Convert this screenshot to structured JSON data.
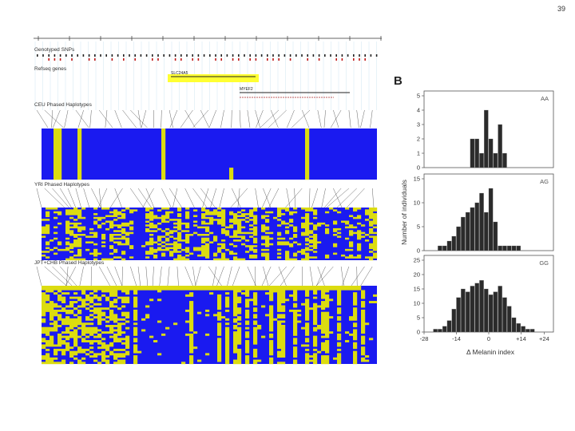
{
  "page": {
    "number": "39"
  },
  "panel_a": {
    "tracks": {
      "genotyped_snps": "Genotyped SNPs",
      "refseq_genes": "Refseq genes",
      "gene_labels": [
        "SLC24A5",
        "MYEF2"
      ]
    },
    "haplotype_blocks": [
      {
        "label": "CEU Phased Haplotypes"
      },
      {
        "label": "YRI Phased Haplotypes"
      },
      {
        "label": "JPT+CHB Phased Haplotypes"
      }
    ],
    "colors": {
      "allele_a": "#1a1af0",
      "allele_b": "#dcdc10",
      "highlight": "#ffff33"
    }
  },
  "panel_b": {
    "label": "B",
    "chart_data": {
      "type": "bar",
      "xlabel": "Δ Melanin index",
      "ylabel": "Number of individuals",
      "xlim": [
        -28,
        28
      ],
      "xticks": [
        "-28",
        "-14",
        "0",
        "+14",
        "+24"
      ],
      "bin_width": 2,
      "panels": [
        {
          "genotype": "AA",
          "ylim": [
            0,
            5
          ],
          "yticks": [
            "0",
            "1",
            "2",
            "3",
            "4",
            "5"
          ],
          "bins": [
            -7,
            -5,
            -3,
            -1,
            1,
            3,
            5,
            7
          ],
          "values": [
            2,
            2,
            1,
            4,
            2,
            1,
            3,
            1
          ]
        },
        {
          "genotype": "AG",
          "ylim": [
            0,
            15
          ],
          "yticks": [
            "0",
            "5",
            "10",
            "15"
          ],
          "bins": [
            -21,
            -19,
            -17,
            -15,
            -13,
            -11,
            -9,
            -7,
            -5,
            -3,
            -1,
            1,
            3,
            5,
            7,
            9,
            11,
            13
          ],
          "values": [
            1,
            1,
            2,
            3,
            5,
            7,
            8,
            9,
            10,
            12,
            8,
            13,
            6,
            1,
            1,
            1,
            1,
            1
          ]
        },
        {
          "genotype": "GG",
          "ylim": [
            0,
            25
          ],
          "yticks": [
            "0",
            "5",
            "10",
            "15",
            "20",
            "25"
          ],
          "bins": [
            -23,
            -21,
            -19,
            -17,
            -15,
            -13,
            -11,
            -9,
            -7,
            -5,
            -3,
            -1,
            1,
            3,
            5,
            7,
            9,
            11,
            13,
            15,
            17,
            19
          ],
          "values": [
            1,
            1,
            2,
            4,
            8,
            12,
            15,
            14,
            16,
            17,
            18,
            15,
            13,
            14,
            16,
            12,
            9,
            5,
            3,
            2,
            1,
            1
          ]
        }
      ]
    }
  }
}
